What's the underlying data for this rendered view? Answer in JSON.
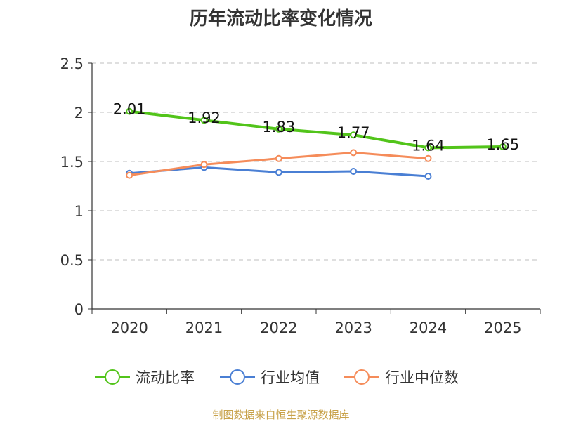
{
  "chart_data": {
    "type": "line",
    "title": "历年流动比率变化情况",
    "categories": [
      "2020",
      "2021",
      "2022",
      "2023",
      "2024",
      "2025"
    ],
    "ylim": [
      0,
      2.5
    ],
    "yticks": [
      "0",
      "0.5",
      "1",
      "1.5",
      "2",
      "2.5"
    ],
    "grid": true,
    "legend_position": "bottom",
    "series": [
      {
        "name": "流动比率",
        "color": "#52c41a",
        "values": [
          2.01,
          1.92,
          1.83,
          1.77,
          1.64,
          1.65
        ],
        "labels": [
          "2.01",
          "1.92",
          "1.83",
          "1.77",
          "1.64",
          "1.65"
        ]
      },
      {
        "name": "行业均值",
        "color": "#4a7fd4",
        "values": [
          1.38,
          1.44,
          1.39,
          1.4,
          1.35,
          null
        ]
      },
      {
        "name": "行业中位数",
        "color": "#f58c5a",
        "values": [
          1.36,
          1.47,
          1.53,
          1.59,
          1.53,
          null
        ]
      }
    ]
  },
  "source_text": "制图数据来自恒生聚源数据库"
}
